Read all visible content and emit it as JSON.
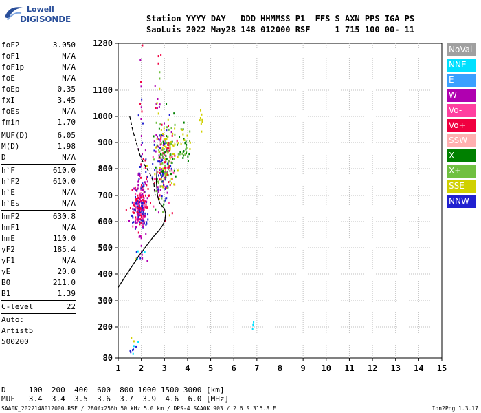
{
  "logo": {
    "top": "Lowell",
    "main": "DIGISONDE"
  },
  "header": {
    "line1": "Station YYYY DAY   DDD HHMMSS P1  FFS S AXN PPS IGA PS",
    "line2": "SaoLuis 2022 May28 148 012000 RSF     1 715 100 00- 11"
  },
  "params": {
    "group1": [
      {
        "label": "foF2",
        "value": "3.050"
      },
      {
        "label": "foF1",
        "value": "N/A"
      },
      {
        "label": "foF1p",
        "value": "N/A"
      },
      {
        "label": "foE",
        "value": "N/A"
      },
      {
        "label": "foEp",
        "value": "0.35"
      },
      {
        "label": "fxI",
        "value": "3.45"
      },
      {
        "label": "foEs",
        "value": "N/A"
      },
      {
        "label": "fmin",
        "value": "1.70"
      }
    ],
    "group2": [
      {
        "label": "MUF(D)",
        "value": "6.05"
      },
      {
        "label": "M(D)",
        "value": "1.98"
      },
      {
        "label": "D",
        "value": "N/A"
      }
    ],
    "group3": [
      {
        "label": "h`F",
        "value": "610.0"
      },
      {
        "label": "h`F2",
        "value": "610.0"
      },
      {
        "label": "h`E",
        "value": "N/A"
      },
      {
        "label": "h`Es",
        "value": "N/A"
      }
    ],
    "group4": [
      {
        "label": "hmF2",
        "value": "630.8"
      },
      {
        "label": "hmF1",
        "value": "N/A"
      },
      {
        "label": "hmE",
        "value": "110.0"
      },
      {
        "label": "yF2",
        "value": "185.4"
      },
      {
        "label": "yF1",
        "value": "N/A"
      },
      {
        "label": "yE",
        "value": "20.0"
      },
      {
        "label": "B0",
        "value": "211.0"
      },
      {
        "label": "B1",
        "value": "1.39"
      }
    ],
    "clevel": {
      "label": "C-level",
      "value": "22"
    },
    "auto": [
      "Auto:",
      "Artist5",
      "500200"
    ]
  },
  "legend": [
    {
      "label": "NoVal",
      "color": "#a0a0a0"
    },
    {
      "label": "NNE",
      "color": "#00e0ff"
    },
    {
      "label": "E",
      "color": "#3aa0ff"
    },
    {
      "label": "W",
      "color": "#b000b0"
    },
    {
      "label": "Vo-",
      "color": "#ff40a0"
    },
    {
      "label": "Vo+",
      "color": "#f00040"
    },
    {
      "label": "SSW",
      "color": "#ffb0b0"
    },
    {
      "label": "X-",
      "color": "#008000"
    },
    {
      "label": "X+",
      "color": "#70c040"
    },
    {
      "label": "SSE",
      "color": "#d0d000"
    },
    {
      "label": "NNW",
      "color": "#2020d0"
    }
  ],
  "chart_data": {
    "type": "scatter",
    "xlim": [
      1,
      15
    ],
    "ylim": [
      80,
      1280
    ],
    "x_ticks": [
      "1",
      "2",
      "3",
      "4",
      "5",
      "6",
      "7",
      "8",
      "9",
      "10",
      "11",
      "12",
      "13",
      "14",
      "15"
    ],
    "y_ticks": [
      "80",
      "200",
      "300",
      "400",
      "500",
      "600",
      "700",
      "800",
      "900",
      "1000",
      "1100",
      "1280"
    ],
    "y_tick_values": [
      80,
      200,
      300,
      400,
      500,
      600,
      700,
      800,
      900,
      1000,
      1100,
      1280
    ],
    "grid": true,
    "profile_solid": [
      [
        1.0,
        350
      ],
      [
        1.3,
        390
      ],
      [
        1.6,
        430
      ],
      [
        1.9,
        470
      ],
      [
        2.2,
        505
      ],
      [
        2.5,
        540
      ],
      [
        2.75,
        565
      ],
      [
        2.92,
        585
      ],
      [
        3.02,
        605
      ],
      [
        3.05,
        630
      ],
      [
        3.0,
        650
      ],
      [
        2.8,
        670
      ],
      [
        2.7,
        700
      ],
      [
        2.65,
        750
      ],
      [
        2.68,
        800
      ]
    ],
    "profile_dashed": [
      [
        1.5,
        1000
      ],
      [
        1.62,
        950
      ],
      [
        1.78,
        900
      ],
      [
        1.95,
        850
      ],
      [
        2.1,
        820
      ],
      [
        2.25,
        800
      ],
      [
        2.38,
        780
      ],
      [
        2.48,
        760
      ],
      [
        2.55,
        740
      ],
      [
        2.6,
        700
      ]
    ],
    "echo_clusters": [
      {
        "fx": 1.95,
        "fy": 640,
        "sx": 0.17,
        "sy": 45,
        "n": 220,
        "colors": [
          "#b000b0",
          "#2020d0",
          "#ff40a0",
          "#f00040"
        ]
      },
      {
        "fx": 2.05,
        "fy": 760,
        "sx": 0.12,
        "sy": 70,
        "n": 50,
        "colors": [
          "#b000b0",
          "#2020d0",
          "#f00040"
        ]
      },
      {
        "fx": 2.95,
        "fy": 800,
        "sx": 0.22,
        "sy": 75,
        "n": 200,
        "colors": [
          "#d0d000",
          "#ff40a0",
          "#f00040",
          "#b000b0",
          "#008000",
          "#70c040",
          "#2020d0"
        ]
      },
      {
        "fx": 3.15,
        "fy": 880,
        "sx": 0.18,
        "sy": 55,
        "n": 70,
        "colors": [
          "#008000",
          "#70c040",
          "#d0d000",
          "#f00040"
        ]
      },
      {
        "fx": 3.85,
        "fy": 890,
        "sx": 0.22,
        "sy": 40,
        "n": 40,
        "colors": [
          "#d0d000",
          "#70c040",
          "#008000"
        ]
      },
      {
        "fx": 2.75,
        "fy": 1050,
        "sx": 0.12,
        "sy": 80,
        "n": 25,
        "colors": [
          "#d0d000",
          "#f00040",
          "#b000b0",
          "#70c040"
        ]
      },
      {
        "fx": 2.0,
        "fy": 1050,
        "sx": 0.05,
        "sy": 80,
        "n": 12,
        "colors": [
          "#b000b0",
          "#2020d0",
          "#f00040"
        ]
      },
      {
        "fx": 4.6,
        "fy": 990,
        "sx": 0.04,
        "sy": 20,
        "n": 8,
        "colors": [
          "#d0d000"
        ]
      },
      {
        "fx": 2.0,
        "fy": 470,
        "sx": 0.15,
        "sy": 15,
        "n": 12,
        "colors": [
          "#2020d0",
          "#d0d000",
          "#b000b0",
          "#00e0ff"
        ]
      },
      {
        "fx": 1.6,
        "fy": 120,
        "sx": 0.15,
        "sy": 25,
        "n": 10,
        "colors": [
          "#2020d0",
          "#00e0ff",
          "#d0d000",
          "#b000b0"
        ]
      },
      {
        "fx": 6.85,
        "fy": 210,
        "sx": 0.01,
        "sy": 12,
        "n": 4,
        "colors": [
          "#00e0ff",
          "#2020d0"
        ]
      }
    ]
  },
  "bottom": {
    "row1": "D     100  200  400  600  800 1000 1500 3000 [km]",
    "row2": "MUF   3.4  3.4  3.5  3.6  3.7  3.9  4.6  6.0 [MHz]"
  },
  "footer": {
    "left": "SAA0K_2022148012000.RSF / 280fx256h 50 kHz 5.0 km / DPS-4 SAA0K 903 / 2.6 S 315.8 E",
    "right": "Ion2Png 1.3.17"
  }
}
